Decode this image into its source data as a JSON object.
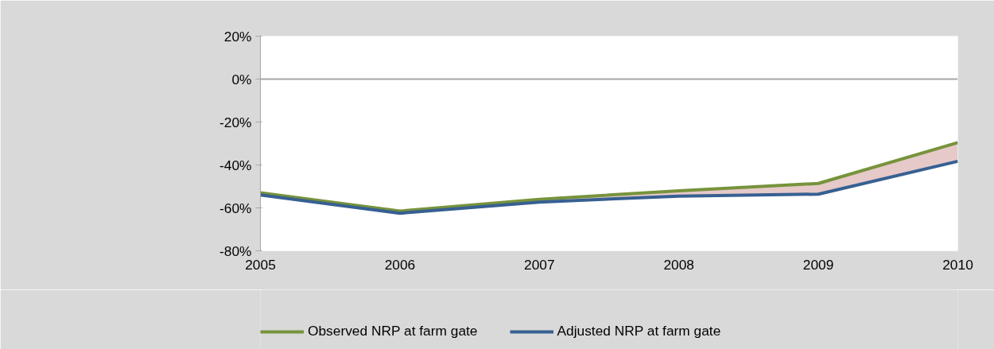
{
  "chart_data": {
    "type": "line",
    "categories": [
      "2005",
      "2006",
      "2007",
      "2008",
      "2009",
      "2010"
    ],
    "series": [
      {
        "name": "Observed NRP at farm gate",
        "color": "#77933c",
        "values": [
          -53,
          -61.5,
          -56,
          -52,
          -48.6,
          -29.6
        ]
      },
      {
        "name": "Adjusted NRP at farm gate",
        "color": "#376092",
        "values": [
          -54,
          -62.5,
          -57.3,
          -54.5,
          -53.6,
          -38.3
        ],
        "lower": [
          -54,
          -62.5,
          -57.3,
          -54.5,
          -53.6,
          -38.3
        ],
        "upper": [
          -53,
          -61.5,
          -56,
          -52,
          -48.6,
          -29.6
        ]
      }
    ],
    "ylim": [
      -80,
      20
    ],
    "yticks": [
      {
        "value": -80,
        "label": "-80%"
      },
      {
        "value": -60,
        "label": "-60%"
      },
      {
        "value": -40,
        "label": "-40%"
      },
      {
        "value": -20,
        "label": "-20%"
      },
      {
        "value": 0,
        "label": "0%"
      },
      {
        "value": 20,
        "label": "20%"
      }
    ],
    "ref_lines": [
      {
        "axis": "y",
        "value": 0,
        "label": null,
        "color": "#a6a6a6"
      }
    ],
    "grid": false,
    "legend": "bottom",
    "marker": "none",
    "line_style": "solid"
  }
}
